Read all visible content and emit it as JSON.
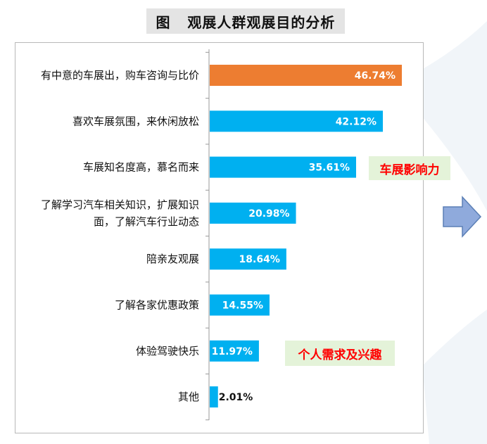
{
  "title": "图   观展人群观展目的分析",
  "colors": {
    "highlight_bar": "#ed7d31",
    "default_bar": "#00b0f0",
    "callout_bg": "#e4f3d9",
    "callout_text": "#ff0000",
    "arrow_fill": "#8faadc",
    "arrow_stroke": "#5b7fb5"
  },
  "callouts": {
    "influence": "车展影响力",
    "personal": "个人需求及兴趣"
  },
  "arrow": {
    "icon": "right-arrow-icon"
  },
  "chart_data": {
    "type": "bar",
    "orientation": "horizontal",
    "categories": [
      "有中意的车展出，购车咨询与比价",
      "喜欢车展氛围，来休闲放松",
      "车展知名度高，慕名而来",
      "了解学习汽车相关知识，扩展知识面，了解汽车行业动态",
      "陪亲友观展",
      "了解各家优惠政策",
      "体验驾驶快乐",
      "其他"
    ],
    "category_lines": [
      [
        "有中意的车展出，购车咨询与比价"
      ],
      [
        "喜欢车展氛围，来休闲放松"
      ],
      [
        "车展知名度高，慕名而来"
      ],
      [
        "了解学习汽车相关知识，扩展知识",
        "面，了解汽车行业动态"
      ],
      [
        "陪亲友观展"
      ],
      [
        "了解各家优惠政策"
      ],
      [
        "体验驾驶快乐"
      ],
      [
        "其他"
      ]
    ],
    "values": [
      46.74,
      42.12,
      35.61,
      20.98,
      18.64,
      14.55,
      11.97,
      2.01
    ],
    "value_labels": [
      "46.74%",
      "42.12%",
      "35.61%",
      "20.98%",
      "18.64%",
      "14.55%",
      "11.97%",
      "2.01%"
    ],
    "highlight_index": 0,
    "xlim": [
      0,
      50
    ],
    "grid": false,
    "legend": "none"
  }
}
